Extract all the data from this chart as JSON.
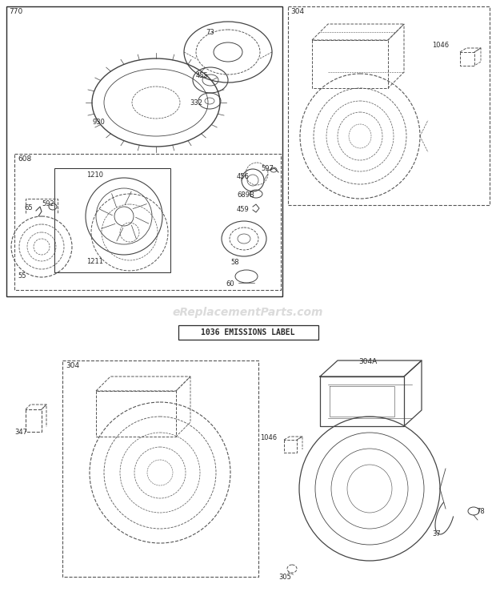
{
  "bg_color": "#ffffff",
  "line_color": "#2a2a2a",
  "dashed_color": "#555555",
  "watermark_text": "eReplacementParts.com",
  "watermark_color": "#cccccc",
  "emissions_label": "1036 EMISSIONS LABEL"
}
